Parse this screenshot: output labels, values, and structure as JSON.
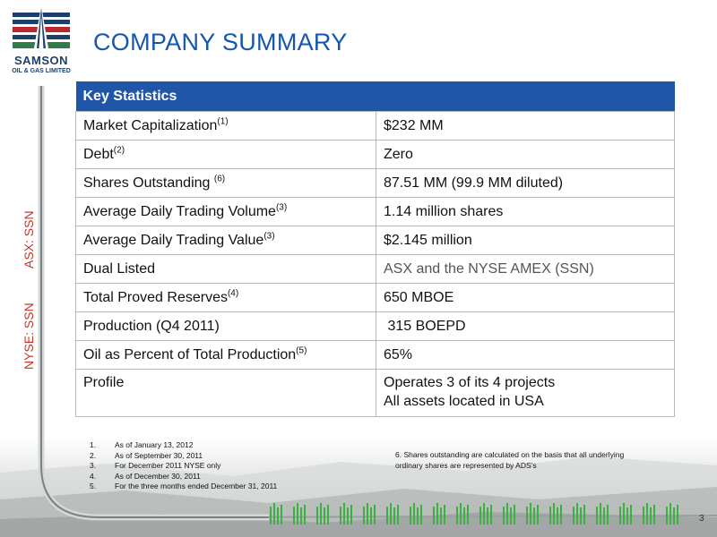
{
  "logo": {
    "name": "SAMSON",
    "subtitle": "OIL & GAS LIMITED"
  },
  "title": "COMPANY SUMMARY",
  "tickers": {
    "asx": "ASX: SSN",
    "nyse": "NYSE: SSN"
  },
  "table": {
    "header": "Key Statistics",
    "rows": [
      {
        "label": "Market Capitalization",
        "sup": "(1)",
        "value": "$232 MM"
      },
      {
        "label": "Debt",
        "sup": "(2)",
        "value": "Zero"
      },
      {
        "label": "Shares Outstanding ",
        "sup": "(6)",
        "value": "87.51 MM (99.9 MM diluted)"
      },
      {
        "label": "Average Daily Trading Volume",
        "sup": "(3)",
        "value": "1.14 million shares"
      },
      {
        "label": "Average Daily Trading Value",
        "sup": "(3)",
        "value": "$2.145 million"
      },
      {
        "label": "Dual Listed",
        "sup": "",
        "value": "ASX and the NYSE AMEX (SSN)"
      },
      {
        "label": "Total Proved Reserves",
        "sup": "(4)",
        "value": "650 MBOE"
      },
      {
        "label": "Production (Q4 2011)",
        "sup": "",
        "value": " 315 BOEPD"
      },
      {
        "label": "Oil as Percent of Total Production",
        "sup": "(5)",
        "value": "65%"
      },
      {
        "label": "Profile",
        "sup": "",
        "value": "Operates 3 of its 4 projects",
        "value2": "All assets located in USA"
      }
    ]
  },
  "footnotes": [
    {
      "num": "1.",
      "text": "As of January 13, 2012"
    },
    {
      "num": "2.",
      "text": "As of September 30, 2011"
    },
    {
      "num": "3.",
      "text": "For December 2011 NYSE only"
    },
    {
      "num": "4.",
      "text": "As of December 30, 2011"
    },
    {
      "num": "5.",
      "text": "For the three months ended December 31, 2011"
    }
  ],
  "note6": "6. Shares outstanding are calculated on the basis that all underlying ordinary shares are represented by ADS’s",
  "page_number": "3",
  "colors": {
    "title_blue": "#1557b0",
    "header_blue": "#1f56a8",
    "ticker_red": "#c0392b",
    "logo_navy": "#1c3f6e",
    "logo_red": "#b8282e",
    "logo_green": "#2e7d4a",
    "grass_green": "#3cb043"
  }
}
